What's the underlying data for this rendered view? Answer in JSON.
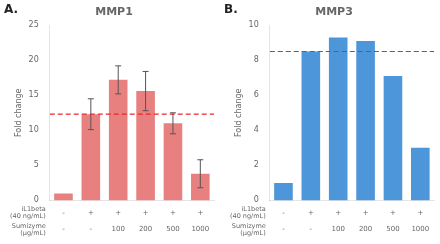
{
  "chart_data": [
    {
      "type": "bar",
      "title": "MMP1",
      "panel_label": "A.",
      "categories": [
        [
          "-",
          "-"
        ],
        [
          "+",
          "-"
        ],
        [
          "+",
          "100"
        ],
        [
          "+",
          "200"
        ],
        [
          "+",
          "500"
        ],
        [
          "+",
          "1000"
        ]
      ],
      "row_labels": [
        "iL1beta\n(40 ng/mL)",
        "Sumizyme\n(μg/mL)"
      ],
      "values": [
        1.0,
        12.3,
        17.2,
        15.6,
        11.0,
        3.8
      ],
      "errors": [
        0.0,
        2.2,
        2.0,
        2.8,
        1.5,
        2.0
      ],
      "color": "#E88080",
      "reference_line": {
        "value": 12.3,
        "color": "#E8282A",
        "line_style": "dashed"
      },
      "ylabel": "Fold change",
      "ylim": [
        0,
        25
      ],
      "yticks": [
        0,
        5,
        10,
        15,
        20,
        25
      ],
      "grid": false
    },
    {
      "type": "bar",
      "title": "MMP3",
      "panel_label": "B.",
      "categories": [
        [
          "-",
          "-"
        ],
        [
          "+",
          "-"
        ],
        [
          "+",
          "100"
        ],
        [
          "+",
          "200"
        ],
        [
          "+",
          "500"
        ],
        [
          "+",
          "1000"
        ]
      ],
      "row_labels": [
        "iL1beta\n(40 ng/mL)",
        "Sumizyme\n(μg/mL)"
      ],
      "values": [
        1.0,
        8.5,
        9.3,
        9.1,
        7.1,
        3.0
      ],
      "color": "#4D96D9",
      "reference_line": {
        "value": 8.5,
        "color": "#E8282A",
        "line_style": "dashed"
      },
      "ylabel": "Fold change",
      "ylim": [
        0,
        10
      ],
      "yticks": [
        0,
        2,
        4,
        6,
        8,
        10
      ],
      "grid": false
    }
  ]
}
